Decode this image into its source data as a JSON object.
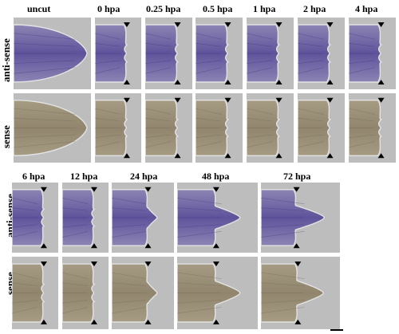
{
  "figure": {
    "top": {
      "times": [
        "uncut",
        "0 hpa",
        "0.25 hpa",
        "0.5 hpa",
        "1 hpa",
        "2 hpa",
        "4 hpa"
      ],
      "rows": [
        "anti-sense",
        "sense"
      ]
    },
    "bottom": {
      "times": [
        "6 hpa",
        "12 hpa",
        "24 hpa",
        "48 hpa",
        "72 hpa"
      ],
      "rows": [
        "anti-sense",
        "sense"
      ]
    },
    "colors": {
      "background_gray": "#bdbdbd",
      "antisense_stain": "#5a4e9a",
      "sense_tissue": "#a59a80",
      "tissue_edge": "#e6e6e6"
    }
  }
}
